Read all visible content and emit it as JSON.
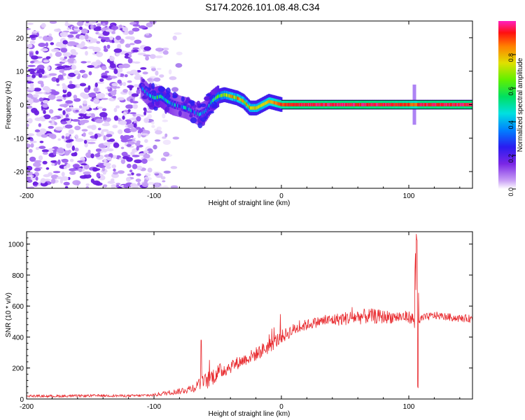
{
  "title": "S174.2026.101.08.48.C34",
  "chart_data": [
    {
      "type": "heatmap",
      "xlabel": "Height of straight line (km)",
      "ylabel": "Frequency (Hz)",
      "xlim": [
        -200,
        150
      ],
      "ylim": [
        -25,
        25
      ],
      "x_ticks": [
        -200,
        -100,
        0,
        100
      ],
      "x_tick_labels": [
        "-200",
        "-100",
        "0",
        "100"
      ],
      "y_ticks": [
        -20,
        -10,
        0,
        10,
        20
      ],
      "y_tick_labels": [
        "-20",
        "-10",
        "0",
        "10",
        "20"
      ],
      "colorbar": {
        "label": "Normalized spectral amplitude",
        "range": [
          0,
          1
        ],
        "ticks": [
          0.0,
          0.2,
          0.4,
          0.6,
          0.8
        ],
        "tick_labels": [
          "0.0",
          "0.2",
          "0.4",
          "0.6",
          "0.8"
        ]
      },
      "signal_track": {
        "height_km": [
          -110,
          -105,
          -100,
          -95,
          -90,
          -85,
          -80,
          -75,
          -70,
          -65,
          -60,
          -55,
          -50,
          -45,
          -40,
          -35,
          -30,
          -25,
          -20,
          -15,
          -10,
          -5,
          0,
          10,
          20,
          40,
          60,
          80,
          100,
          105,
          110,
          130,
          150
        ],
        "frequency_hz": [
          5,
          3,
          2,
          2.5,
          1,
          0,
          -0.5,
          -1,
          -2,
          -3,
          -2,
          1,
          2.5,
          3,
          2.5,
          2,
          1,
          -1,
          -1,
          0,
          1,
          0.5,
          0,
          0,
          0,
          0,
          0,
          0,
          0,
          0,
          0,
          0,
          0
        ],
        "amplitude": [
          0.3,
          0.35,
          0.4,
          0.45,
          0.4,
          0.35,
          0.3,
          0.35,
          0.3,
          0.3,
          0.35,
          0.45,
          0.55,
          0.65,
          0.7,
          0.72,
          0.7,
          0.7,
          0.72,
          0.75,
          0.8,
          0.85,
          0.9,
          0.95,
          0.95,
          0.95,
          0.95,
          0.95,
          0.9,
          0.85,
          0.95,
          0.95,
          0.95
        ]
      },
      "noise_region_km": [
        -200,
        -80
      ]
    },
    {
      "type": "line",
      "xlabel": "Height of straight line (km)",
      "ylabel": "SNR (10 * v/v)",
      "xlim": [
        -200,
        150
      ],
      "ylim": [
        0,
        1080
      ],
      "x_ticks": [
        -200,
        -100,
        0,
        100
      ],
      "x_tick_labels": [
        "-200",
        "-100",
        "0",
        "100"
      ],
      "y_ticks": [
        0,
        200,
        400,
        600,
        800,
        1000
      ],
      "y_tick_labels": [
        "0",
        "200",
        "400",
        "600",
        "800",
        "1000"
      ],
      "series": [
        {
          "name": "SNR",
          "color": "#e8292d",
          "x": [
            -200,
            -180,
            -160,
            -140,
            -120,
            -100,
            -90,
            -80,
            -70,
            -65,
            -60,
            -55,
            -50,
            -45,
            -40,
            -30,
            -20,
            -10,
            0,
            10,
            20,
            30,
            40,
            50,
            60,
            70,
            80,
            90,
            100,
            103,
            105,
            106,
            107,
            108,
            110,
            115,
            120,
            130,
            140,
            150
          ],
          "y": [
            20,
            18,
            20,
            22,
            20,
            25,
            40,
            50,
            70,
            90,
            110,
            140,
            170,
            190,
            210,
            250,
            290,
            340,
            400,
            450,
            480,
            500,
            510,
            520,
            530,
            535,
            530,
            530,
            530,
            520,
            480,
            80,
            1000,
            480,
            520,
            530,
            540,
            530,
            520,
            520
          ],
          "noise_amplitude": [
            8,
            8,
            8,
            8,
            8,
            10,
            15,
            20,
            30,
            40,
            55,
            60,
            55,
            50,
            45,
            40,
            45,
            50,
            45,
            40,
            35,
            35,
            40,
            45,
            50,
            50,
            45,
            40,
            40,
            40,
            60,
            30,
            0,
            60,
            30,
            25,
            25,
            25,
            25,
            25
          ]
        }
      ],
      "annotations": [
        {
          "x": -63,
          "y": 380,
          "label": ""
        },
        {
          "x": 106,
          "y": 1070,
          "label": ""
        }
      ]
    }
  ]
}
